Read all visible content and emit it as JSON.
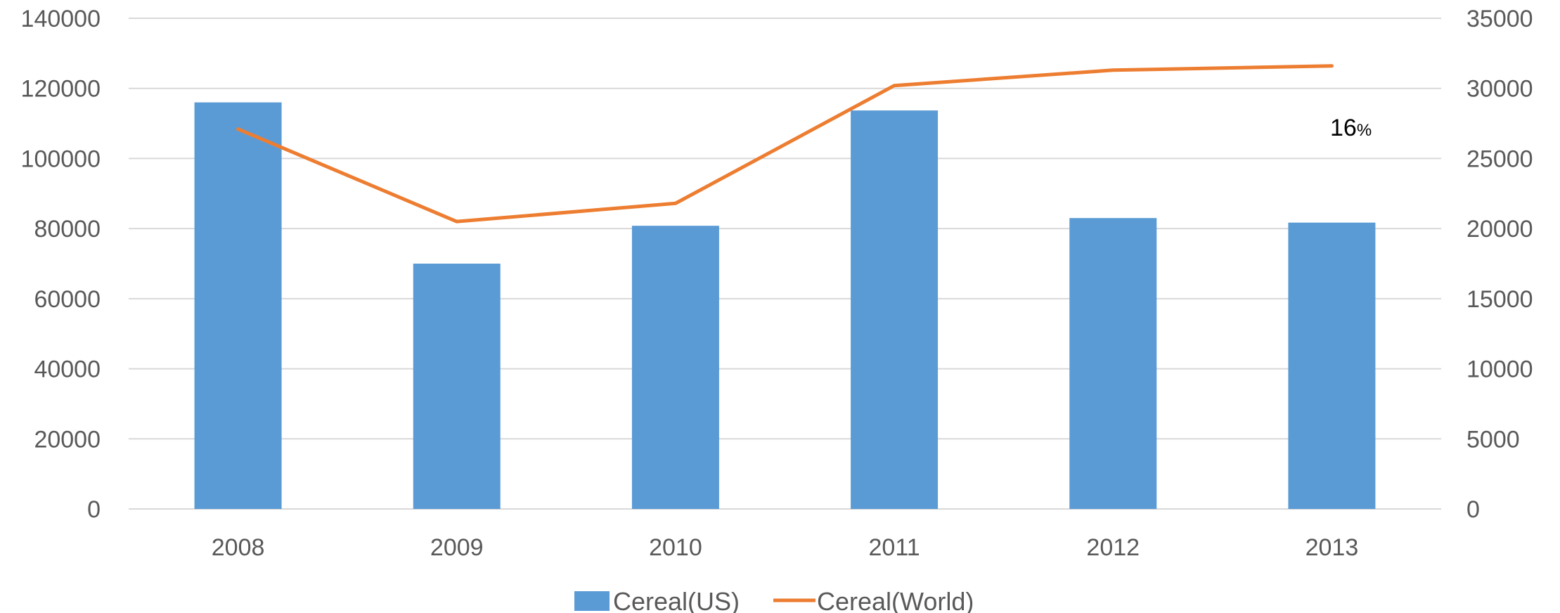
{
  "chart_data": {
    "type": "bar",
    "categories": [
      "2008",
      "2009",
      "2010",
      "2011",
      "2012",
      "2013"
    ],
    "series": [
      {
        "name": "Cereal(US)",
        "type": "bar",
        "axis": "left",
        "color": "#5b9bd5",
        "values": [
          116000,
          70000,
          80800,
          113700,
          83000,
          81700
        ]
      },
      {
        "name": "Cereal(World)",
        "type": "line",
        "axis": "right",
        "color": "#ed7d31",
        "values": [
          27100,
          20500,
          21800,
          30200,
          31300,
          31600
        ]
      }
    ],
    "y_left": {
      "min": 0,
      "max": 140000,
      "ticks": [
        "0",
        "20000",
        "40000",
        "60000",
        "80000",
        "100000",
        "120000",
        "140000"
      ]
    },
    "y_right": {
      "min": 0,
      "max": 35000,
      "ticks": [
        "0",
        "5000",
        "10000",
        "15000",
        "20000",
        "25000",
        "30000",
        "35000"
      ]
    },
    "title": "",
    "xlabel": "",
    "ylabel": "",
    "grid": true,
    "legend": "bottom",
    "annotation": {
      "number": "16",
      "unit": "%"
    },
    "gridline_color": "#d9d9d9",
    "axis_line_color": "#d9d9d9"
  }
}
